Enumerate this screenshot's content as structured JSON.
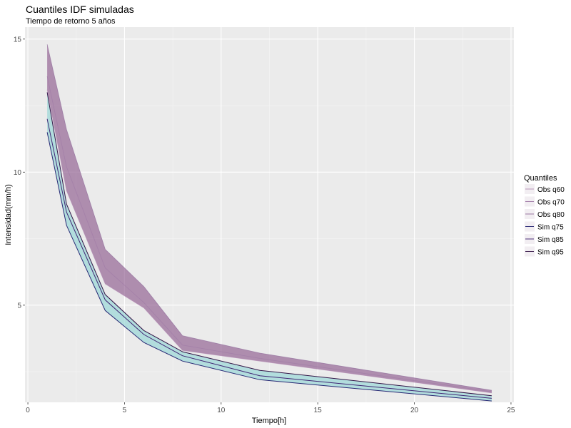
{
  "chart_data": {
    "type": "area",
    "title": "Cuantiles IDF simuladas",
    "subtitle": "Tiempo de retorno 5 años",
    "xlabel": "Tiempo[h]",
    "ylabel": "Intensidad(mm/h)",
    "xlim": [
      -0.15,
      25.15
    ],
    "ylim": [
      1.35,
      15.45
    ],
    "x_ticks": [
      0,
      5,
      10,
      15,
      20,
      25
    ],
    "y_ticks": [
      5,
      10,
      15
    ],
    "grid": true,
    "legend_position": "right",
    "legend_title": "Quantiles",
    "x": [
      1,
      2,
      4,
      6,
      8,
      12,
      24
    ],
    "series": [
      {
        "name": "Obs q60",
        "group": "obs",
        "color": "#b58cb5",
        "values": [
          13.1,
          9.3,
          5.8,
          4.9,
          3.3,
          2.9,
          1.7
        ]
      },
      {
        "name": "Obs q70",
        "group": "obs",
        "color": "#a07aa6",
        "values": [
          13.6,
          10.2,
          6.4,
          5.1,
          3.5,
          3.0,
          1.75
        ]
      },
      {
        "name": "Obs q80",
        "group": "obs",
        "color": "#8f6a9a",
        "values": [
          14.8,
          11.6,
          7.1,
          5.7,
          3.85,
          3.2,
          1.8
        ]
      },
      {
        "name": "Sim q75",
        "group": "sim",
        "color": "#1e1e6e",
        "values": [
          11.5,
          8.0,
          4.8,
          3.6,
          2.9,
          2.2,
          1.4
        ]
      },
      {
        "name": "Sim q85",
        "group": "sim",
        "color": "#3a1a6e",
        "values": [
          12.0,
          8.5,
          5.2,
          3.9,
          3.1,
          2.35,
          1.5
        ]
      },
      {
        "name": "Sim q95",
        "group": "sim",
        "color": "#2a0a3e",
        "values": [
          13.0,
          8.8,
          5.4,
          4.05,
          3.25,
          2.55,
          1.6
        ]
      }
    ],
    "ribbons": [
      {
        "group": "obs",
        "lower": "Obs q60",
        "upper": "Obs q80",
        "fill": "#8e5a8e",
        "opacity": 0.65
      },
      {
        "group": "sim",
        "lower": "Sim q75",
        "upper": "Sim q95",
        "fill": "#9fd8d8",
        "opacity": 0.75
      }
    ],
    "colors": {
      "panel_background": "#ebebeb",
      "grid_major": "#ffffff",
      "tick_label": "#4d4d4d"
    }
  }
}
